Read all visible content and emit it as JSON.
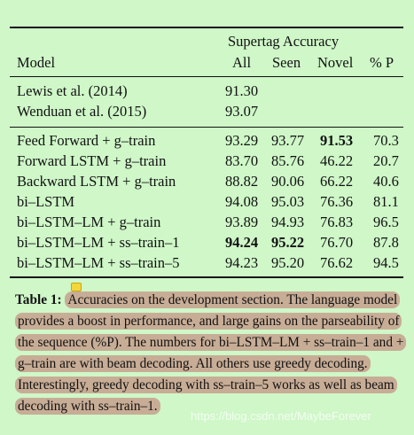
{
  "table": {
    "group_header": "Supertag Accuracy",
    "col_model": "Model",
    "col_all": "All",
    "col_seen": "Seen",
    "col_novel": "Novel",
    "col_p": "% P",
    "rows_prior": [
      {
        "model": "Lewis et al. (2014)",
        "all": "91.30",
        "seen": "",
        "novel": "",
        "p": ""
      },
      {
        "model": "Wenduan et al. (2015)",
        "all": "93.07",
        "seen": "",
        "novel": "",
        "p": ""
      }
    ],
    "rows_ours": [
      {
        "model": "Feed Forward + g–train",
        "all": "93.29",
        "seen": "93.77",
        "novel": "91.53",
        "p": "70.3"
      },
      {
        "model": "Forward LSTM + g–train",
        "all": "83.70",
        "seen": "85.76",
        "novel": "46.22",
        "p": "20.7"
      },
      {
        "model": "Backward LSTM + g–train",
        "all": "88.82",
        "seen": "90.06",
        "novel": "66.22",
        "p": "40.6"
      },
      {
        "model": "bi–LSTM",
        "all": "94.08",
        "seen": "95.03",
        "novel": "76.36",
        "p": "81.1"
      },
      {
        "model": "bi–LSTM–LM + g–train",
        "all": "93.89",
        "seen": "94.93",
        "novel": "76.83",
        "p": "96.5"
      },
      {
        "model": "bi–LSTM–LM + ss–train–1",
        "all": "94.24",
        "seen": "95.22",
        "novel": "76.70",
        "p": "87.8"
      },
      {
        "model": "bi–LSTM–LM + ss–train–5",
        "all": "94.23",
        "seen": "95.20",
        "novel": "76.62",
        "p": "94.5"
      }
    ]
  },
  "caption": {
    "label": "Table 1:",
    "text": "Accuracies on the development section. The language model provides a boost in performance, and large gains on the parseability of the sequence (%P). The numbers for bi–LSTM–LM + ss–train–1 and + g–train are with beam decoding.  All others use greedy decoding. Interestingly, greedy decoding with ss–train–5 works as well as beam decoding with ss–train–1."
  },
  "watermark": "https://blog.csdn.net/MaybeForever"
}
